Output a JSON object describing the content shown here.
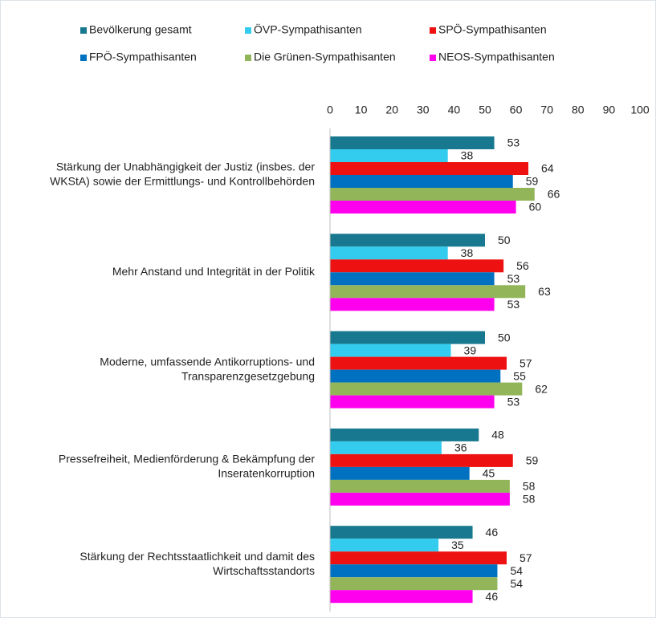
{
  "chart_data": {
    "type": "bar",
    "orientation": "horizontal",
    "categories": [
      [
        "Stärkung der Unabhängigkeit der Justiz (insbes. der",
        "WKStA) sowie der Ermittlungs- und Kontrollbehörden"
      ],
      [
        "Mehr Anstand und Integrität in der Politik"
      ],
      [
        "Moderne, umfassende Antikorruptions- und",
        "Transparenzgesetzgebung"
      ],
      [
        "Pressefreiheit, Medienförderung & Bekämpfung der",
        "Inseratenkorruption"
      ],
      [
        "Stärkung der Rechtsstaatlichkeit und damit des",
        "Wirtschaftsstandorts"
      ]
    ],
    "series": [
      {
        "name": "Bevölkerung gesamt",
        "color": "#17788f",
        "values": [
          53,
          50,
          50,
          48,
          46
        ]
      },
      {
        "name": "ÖVP-Sympathisanten",
        "color": "#33ccee",
        "values": [
          38,
          38,
          39,
          36,
          35
        ]
      },
      {
        "name": "SPÖ-Sympathisanten",
        "color": "#ee1111",
        "values": [
          64,
          56,
          57,
          59,
          57
        ]
      },
      {
        "name": "FPÖ-Sympathisanten",
        "color": "#0070c0",
        "values": [
          59,
          53,
          55,
          45,
          54
        ]
      },
      {
        "name": "Die Grünen-Sympathisanten",
        "color": "#92b55a",
        "values": [
          66,
          63,
          62,
          58,
          54
        ]
      },
      {
        "name": "NEOS-Sympathisanten",
        "color": "#ff00ee",
        "values": [
          60,
          53,
          53,
          58,
          46
        ]
      }
    ],
    "xlim": [
      0,
      100
    ],
    "xticks": [
      0,
      10,
      20,
      30,
      40,
      50,
      60,
      70,
      80,
      90,
      100
    ],
    "legend": "top"
  }
}
